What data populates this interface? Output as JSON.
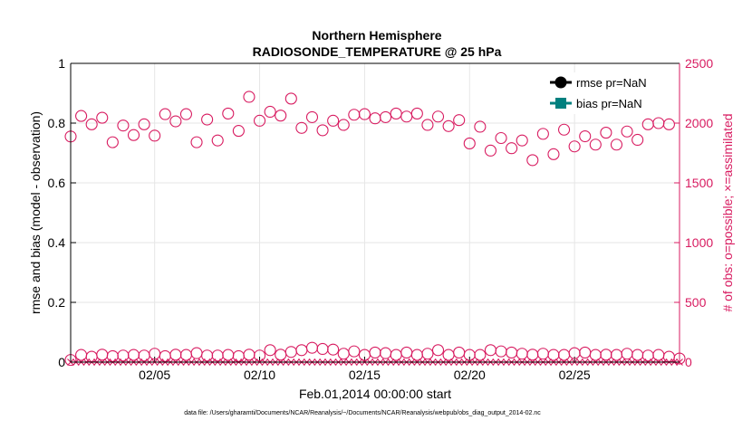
{
  "chart_data": {
    "type": "scatter",
    "title_line1": "Northern Hemisphere",
    "title_line2": "RADIOSONDE_TEMPERATURE @ 25 hPa",
    "ylabel_left": "rmse and bias (model - observation)",
    "ylabel_right": "# of obs: o=possible; ×=assimilated",
    "xlabel": "Feb.01,2014 00:00:00 start",
    "footer": "data file: /Users/gharamti/Documents/NCAR/Reanalysis/~/Documents/NCAR/Reanalysis/webpub/obs_diag_output_2014-02.nc",
    "ylim_left": [
      0,
      1
    ],
    "yticks_left": [
      "0",
      "0.2",
      "0.4",
      "0.6",
      "0.8",
      "1"
    ],
    "ylim_right": [
      0,
      2500
    ],
    "yticks_right": [
      "0",
      "500",
      "1000",
      "1500",
      "2000",
      "2500"
    ],
    "xlim": [
      1,
      30
    ],
    "xticks": [
      {
        "x": 5,
        "label": "02/05"
      },
      {
        "x": 10,
        "label": "02/10"
      },
      {
        "x": 15,
        "label": "02/15"
      },
      {
        "x": 20,
        "label": "02/20"
      },
      {
        "x": 25,
        "label": "02/25"
      }
    ],
    "colors": {
      "obs": "#d81b60",
      "rmse": "#000000",
      "bias": "#00807f"
    },
    "legend": {
      "position": "top-right",
      "entries": [
        {
          "label": "rmse pr=NaN",
          "color": "#000000",
          "marker": "circle"
        },
        {
          "label": "bias pr=NaN",
          "color": "#00807f",
          "marker": "square"
        }
      ]
    },
    "series": [
      {
        "name": "possible (upper)",
        "marker": "open-circle",
        "axis": "right",
        "x": [
          1.0,
          1.5,
          2.0,
          2.5,
          3.0,
          3.5,
          4.0,
          4.5,
          5.0,
          5.5,
          6.0,
          6.5,
          7.0,
          7.5,
          8.0,
          8.5,
          9.0,
          9.5,
          10.0,
          10.5,
          11.0,
          11.5,
          12.0,
          12.5,
          13.0,
          13.5,
          14.0,
          14.5,
          15.0,
          15.5,
          16.0,
          16.5,
          17.0,
          17.5,
          18.0,
          18.5,
          19.0,
          19.5,
          20.0,
          20.5,
          21.0,
          21.5,
          22.0,
          22.5,
          23.0,
          23.5,
          24.0,
          24.5,
          25.0,
          25.5,
          26.0,
          26.5,
          27.0,
          27.5,
          28.0,
          28.5,
          29.0,
          29.5
        ],
        "values": [
          1888,
          2060,
          1990,
          2045,
          1840,
          1980,
          1900,
          1990,
          1895,
          2075,
          2015,
          2075,
          1840,
          2030,
          1855,
          2080,
          1935,
          2220,
          2020,
          2095,
          2063,
          2205,
          1960,
          2050,
          1940,
          2020,
          1985,
          2070,
          2075,
          2040,
          2050,
          2080,
          2055,
          2080,
          1985,
          2055,
          1975,
          2025,
          1830,
          1970,
          1770,
          1875,
          1790,
          1855,
          1690,
          1910,
          1740,
          1945,
          1805,
          1890,
          1820,
          1920,
          1820,
          1930,
          1860,
          1990,
          2000,
          1990
        ]
      },
      {
        "name": "possible (lower)",
        "marker": "open-circle",
        "axis": "right",
        "x": [
          1.0,
          1.5,
          2.0,
          2.5,
          3.0,
          3.5,
          4.0,
          4.5,
          5.0,
          5.5,
          6.0,
          6.5,
          7.0,
          7.5,
          8.0,
          8.5,
          9.0,
          9.5,
          10.0,
          10.5,
          11.0,
          11.5,
          12.0,
          12.5,
          13.0,
          13.5,
          14.0,
          14.5,
          15.0,
          15.5,
          16.0,
          16.5,
          17.0,
          17.5,
          18.0,
          18.5,
          19.0,
          19.5,
          20.0,
          20.5,
          21.0,
          21.5,
          22.0,
          22.5,
          23.0,
          23.5,
          24.0,
          24.5,
          25.0,
          25.5,
          26.0,
          26.5,
          27.0,
          27.5,
          28.0,
          28.5,
          29.0,
          29.5,
          30.0
        ],
        "values": [
          18,
          60,
          45,
          62,
          50,
          55,
          60,
          55,
          70,
          50,
          62,
          60,
          75,
          55,
          55,
          60,
          50,
          62,
          55,
          100,
          62,
          85,
          100,
          120,
          110,
          105,
          70,
          90,
          60,
          80,
          75,
          60,
          80,
          60,
          70,
          100,
          60,
          80,
          60,
          60,
          100,
          90,
          80,
          70,
          62,
          70,
          60,
          60,
          75,
          80,
          60,
          62,
          60,
          70,
          60,
          55,
          60,
          45,
          30
        ]
      },
      {
        "name": "assimilated",
        "marker": "x",
        "axis": "right",
        "x": [
          1.0,
          1.25,
          1.5,
          1.75,
          2.0,
          2.25,
          2.5,
          2.75,
          3.0,
          3.25,
          3.5,
          3.75,
          4.0,
          4.25,
          4.5,
          4.75,
          5.0,
          5.25,
          5.5,
          5.75,
          6.0,
          6.25,
          6.5,
          6.75,
          7.0,
          7.25,
          7.5,
          7.75,
          8.0,
          8.25,
          8.5,
          8.75,
          9.0,
          9.25,
          9.5,
          9.75,
          10.0,
          10.25,
          10.5,
          10.75,
          11.0,
          11.25,
          11.5,
          11.75,
          12.0,
          12.25,
          12.5,
          12.75,
          13.0,
          13.25,
          13.5,
          13.75,
          14.0,
          14.25,
          14.5,
          14.75,
          15.0,
          15.25,
          15.5,
          15.75,
          16.0,
          16.25,
          16.5,
          16.75,
          17.0,
          17.25,
          17.5,
          17.75,
          18.0,
          18.25,
          18.5,
          18.75,
          19.0,
          19.25,
          19.5,
          19.75,
          20.0,
          20.25,
          20.5,
          20.75,
          21.0,
          21.25,
          21.5,
          21.75,
          22.0,
          22.25,
          22.5,
          22.75,
          23.0,
          23.25,
          23.5,
          23.75,
          24.0,
          24.25,
          24.5,
          24.75,
          25.0,
          25.25,
          25.5,
          25.75,
          26.0,
          26.25,
          26.5,
          26.75,
          27.0,
          27.25,
          27.5,
          27.75,
          28.0,
          28.25,
          28.5,
          28.75,
          29.0,
          29.25,
          29.5,
          29.75,
          30.0
        ],
        "values": [
          0,
          0,
          0,
          0,
          0,
          0,
          0,
          0,
          0,
          0,
          0,
          0,
          0,
          0,
          0,
          0,
          0,
          0,
          0,
          0,
          0,
          0,
          0,
          0,
          0,
          0,
          0,
          0,
          0,
          0,
          0,
          0,
          0,
          0,
          0,
          0,
          0,
          0,
          0,
          0,
          0,
          0,
          0,
          0,
          0,
          0,
          0,
          0,
          0,
          0,
          0,
          0,
          0,
          0,
          0,
          0,
          0,
          0,
          0,
          0,
          0,
          0,
          0,
          0,
          0,
          0,
          0,
          0,
          0,
          0,
          0,
          0,
          0,
          0,
          0,
          0,
          0,
          0,
          0,
          0,
          0,
          0,
          0,
          0,
          0,
          0,
          0,
          0,
          0,
          0,
          0,
          0,
          0,
          0,
          0,
          0,
          0,
          0,
          0,
          0,
          0,
          0,
          0,
          0,
          0,
          0,
          0,
          0,
          0,
          0,
          0,
          0,
          0,
          0,
          0,
          0,
          0
        ]
      }
    ]
  }
}
